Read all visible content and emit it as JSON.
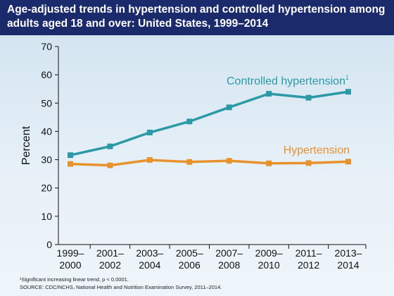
{
  "title": "Age-adjusted trends in hypertension and controlled hypertension among adults aged 18 and over: United States, 1999–2014",
  "footnotes": {
    "note": "¹Significant increasing linear trend, p < 0.0001.",
    "source": "SOURCE: CDC/NCHS, National Health and Nutrition Examination Survey, 2011–2014."
  },
  "colors": {
    "controlled": "#2b9aa6",
    "hypertension": "#e8922e",
    "title_bg": "#1b2a6b"
  },
  "chart_data": {
    "type": "line",
    "title": "Age-adjusted trends in hypertension and controlled hypertension among adults aged 18 and over: United States, 1999–2014",
    "ylabel": "Percent",
    "xlabel": "",
    "ylim": [
      0,
      70
    ],
    "yticks": [
      0,
      10,
      20,
      30,
      40,
      50,
      60,
      70
    ],
    "grid": false,
    "categories": [
      [
        "1999–",
        "2000"
      ],
      [
        "2001–",
        "2002"
      ],
      [
        "2003–",
        "2004"
      ],
      [
        "2005–",
        "2006"
      ],
      [
        "2007–",
        "2008"
      ],
      [
        "2009–",
        "2010"
      ],
      [
        "2011–",
        "2012"
      ],
      [
        "2013–",
        "2014"
      ]
    ],
    "series": [
      {
        "name": "Controlled hypertension",
        "superscript": "1",
        "values": [
          31.6,
          34.7,
          39.6,
          43.5,
          48.5,
          53.3,
          51.9,
          54.0
        ]
      },
      {
        "name": "Hypertension",
        "values": [
          28.5,
          28.0,
          29.9,
          29.2,
          29.6,
          28.7,
          28.8,
          29.3
        ]
      }
    ]
  }
}
